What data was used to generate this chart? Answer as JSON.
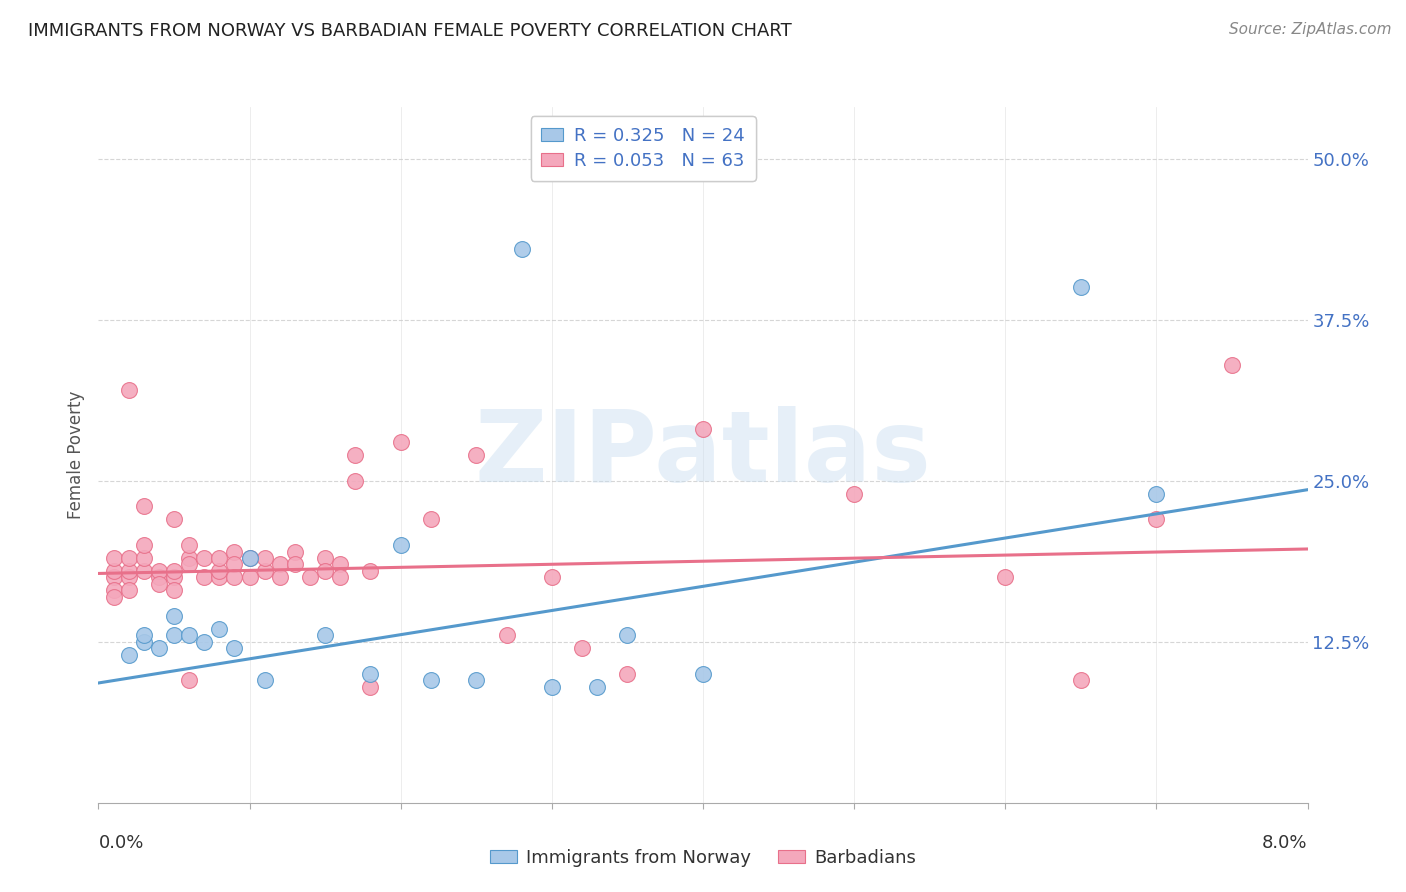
{
  "title": "IMMIGRANTS FROM NORWAY VS BARBADIAN FEMALE POVERTY CORRELATION CHART",
  "source": "Source: ZipAtlas.com",
  "ylabel": "Female Poverty",
  "ytick_vals": [
    0.125,
    0.25,
    0.375,
    0.5
  ],
  "ytick_labels": [
    "12.5%",
    "25.0%",
    "37.5%",
    "50.0%"
  ],
  "xlim": [
    0.0,
    0.08
  ],
  "ylim": [
    0.0,
    0.54
  ],
  "legend_r1": "R = 0.325   N = 24",
  "legend_r2": "R = 0.053   N = 63",
  "legend_label1": "Immigrants from Norway",
  "legend_label2": "Barbadians",
  "color_blue": "#a8c8e8",
  "color_pink": "#f4a8bc",
  "line_color_blue": "#5599cc",
  "line_color_pink": "#e8708a",
  "watermark": "ZIPatlas",
  "norway_x": [
    0.002,
    0.003,
    0.003,
    0.004,
    0.005,
    0.005,
    0.006,
    0.007,
    0.008,
    0.009,
    0.01,
    0.011,
    0.015,
    0.018,
    0.02,
    0.022,
    0.025,
    0.028,
    0.03,
    0.033,
    0.035,
    0.04,
    0.065,
    0.07
  ],
  "norway_y": [
    0.115,
    0.125,
    0.13,
    0.12,
    0.13,
    0.145,
    0.13,
    0.125,
    0.135,
    0.12,
    0.19,
    0.095,
    0.13,
    0.1,
    0.2,
    0.095,
    0.095,
    0.43,
    0.09,
    0.09,
    0.13,
    0.1,
    0.4,
    0.24
  ],
  "barbadian_x": [
    0.001,
    0.001,
    0.001,
    0.001,
    0.001,
    0.002,
    0.002,
    0.002,
    0.002,
    0.003,
    0.003,
    0.003,
    0.004,
    0.004,
    0.004,
    0.005,
    0.005,
    0.005,
    0.005,
    0.006,
    0.006,
    0.006,
    0.007,
    0.007,
    0.008,
    0.008,
    0.008,
    0.009,
    0.009,
    0.009,
    0.01,
    0.01,
    0.011,
    0.011,
    0.012,
    0.012,
    0.013,
    0.013,
    0.014,
    0.015,
    0.015,
    0.016,
    0.016,
    0.017,
    0.017,
    0.018,
    0.018,
    0.02,
    0.022,
    0.025,
    0.027,
    0.03,
    0.032,
    0.035,
    0.04,
    0.05,
    0.06,
    0.065,
    0.07,
    0.075,
    0.002,
    0.003,
    0.006
  ],
  "barbadian_y": [
    0.175,
    0.18,
    0.19,
    0.165,
    0.16,
    0.175,
    0.18,
    0.19,
    0.165,
    0.18,
    0.19,
    0.2,
    0.175,
    0.18,
    0.17,
    0.175,
    0.165,
    0.18,
    0.22,
    0.19,
    0.2,
    0.185,
    0.19,
    0.175,
    0.175,
    0.18,
    0.19,
    0.195,
    0.185,
    0.175,
    0.19,
    0.175,
    0.18,
    0.19,
    0.185,
    0.175,
    0.195,
    0.185,
    0.175,
    0.19,
    0.18,
    0.185,
    0.175,
    0.25,
    0.27,
    0.18,
    0.09,
    0.28,
    0.22,
    0.27,
    0.13,
    0.175,
    0.12,
    0.1,
    0.29,
    0.24,
    0.175,
    0.095,
    0.22,
    0.34,
    0.32,
    0.23,
    0.095
  ],
  "norway_line_x": [
    0.0,
    0.08
  ],
  "norway_line_y": [
    0.093,
    0.243
  ],
  "barbadian_line_x": [
    0.0,
    0.08
  ],
  "barbadian_line_y": [
    0.178,
    0.197
  ],
  "grid_color": "#cccccc",
  "title_color": "#222222",
  "source_color": "#888888",
  "axis_label_color": "#555555",
  "right_tick_color": "#4472c4",
  "bottom_tick_color": "#333333"
}
